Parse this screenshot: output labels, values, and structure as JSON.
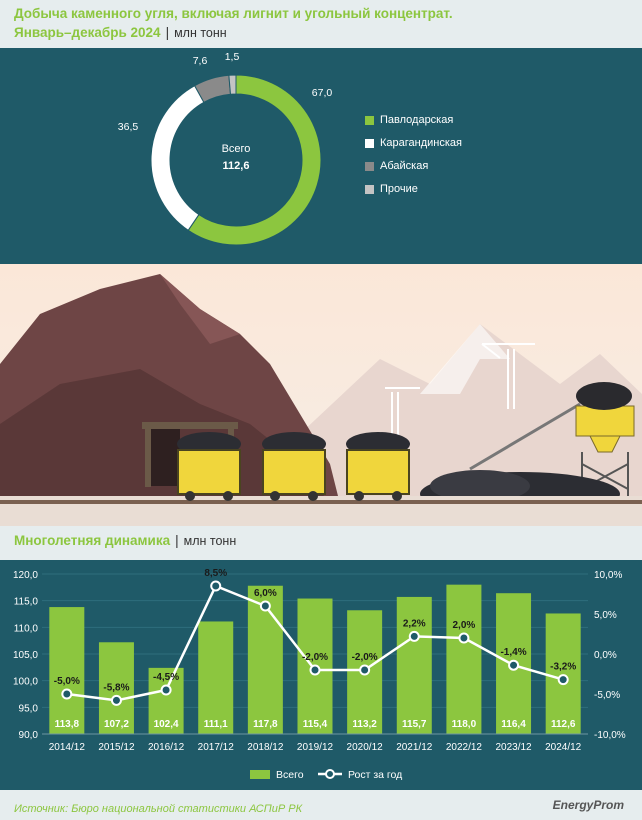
{
  "header": {
    "title_line1": "Добыча каменного угля, включая лигнит и угольный концентрат.",
    "period": "Январь–декабрь 2024",
    "unit": "млн тонн"
  },
  "donut": {
    "center_label": "Всего",
    "center_value": "112,6",
    "slices": [
      {
        "name": "Павлодарская",
        "value": 67.0,
        "label": "67,0",
        "color": "#8cc63f"
      },
      {
        "name": "Карагандинская",
        "value": 36.5,
        "label": "36,5",
        "color": "#ffffff"
      },
      {
        "name": "Абайская",
        "value": 7.6,
        "label": "7,6",
        "color": "#8a8a8a"
      },
      {
        "name": "Прочие",
        "value": 1.5,
        "label": "1,5",
        "color": "#c4c4c4"
      }
    ]
  },
  "dynamics_header": {
    "title": "Многолетняя динамика",
    "unit": "млн тонн"
  },
  "chart_data": {
    "type": "bar",
    "categories": [
      "2014/12",
      "2015/12",
      "2016/12",
      "2017/12",
      "2018/12",
      "2019/12",
      "2020/12",
      "2021/12",
      "2022/12",
      "2023/12",
      "2024/12"
    ],
    "series": [
      {
        "name": "Всего",
        "values": [
          113.8,
          107.2,
          102.4,
          111.1,
          117.8,
          115.4,
          113.2,
          115.7,
          118.0,
          116.4,
          112.6
        ],
        "labels": [
          "113,8",
          "107,2",
          "102,4",
          "111,1",
          "117,8",
          "115,4",
          "113,2",
          "115,7",
          "118,0",
          "116,4",
          "112,6"
        ],
        "color": "#8cc63f"
      },
      {
        "name": "Рост за год",
        "type": "line",
        "values": [
          -5.0,
          -5.8,
          -4.5,
          8.5,
          6.0,
          -2.0,
          -2.0,
          2.2,
          2.0,
          -1.4,
          -3.2
        ],
        "labels": [
          "-5,0%",
          "-5,8%",
          "-4,5%",
          "8,5%",
          "6,0%",
          "-2,0%",
          "-2,0%",
          "2,2%",
          "2,0%",
          "-1,4%",
          "-3,2%"
        ],
        "color": "#ffffff"
      }
    ],
    "ylim": [
      90,
      120
    ],
    "yticks": [
      "120,0",
      "115,0",
      "110,0",
      "105,0",
      "100,0",
      "95,0",
      "90,0"
    ],
    "y2lim": [
      -10,
      10
    ],
    "y2ticks": [
      "10,0%",
      "5,0%",
      "0,0%",
      "-5,0%",
      "-10,0%"
    ],
    "legend_position": "bottom"
  },
  "footer": {
    "source": "Источник: Бюро национальной статистики АСПиР РК",
    "brand": "EnergyProm"
  }
}
